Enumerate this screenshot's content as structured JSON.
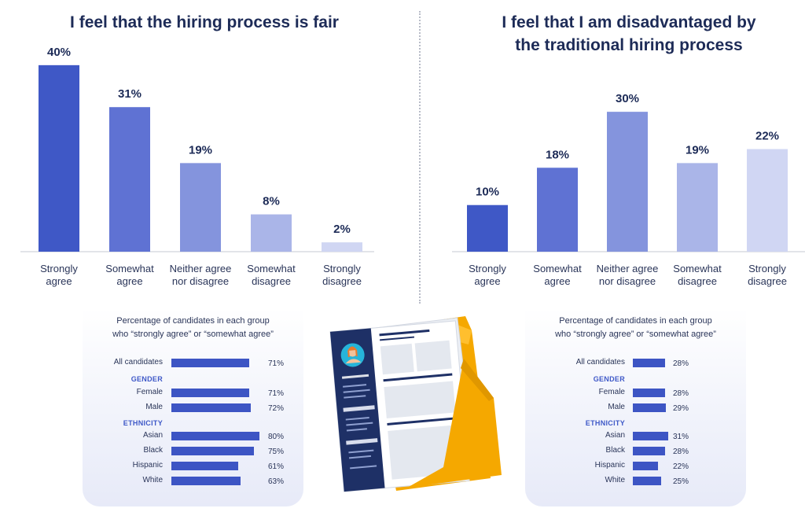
{
  "colors": {
    "bar_1": "#3f58c6",
    "bar_2": "#5f72d3",
    "bar_3": "#8494dd",
    "bar_4": "#aab5e8",
    "bar_5": "#d0d6f3",
    "hbar": "#3d55c4",
    "text": "#1f2b52",
    "group_label": "#3f59c8",
    "folder": "#f5a800",
    "document_dark": "#1e3066"
  },
  "left_chart": {
    "title": "I feel that the hiring process is fair"
  },
  "right_chart": {
    "title_line1": "I feel that I am disadvantaged by",
    "title_line2": "the traditional hiring process"
  },
  "panel_left": {
    "subtitle_line1": "Percentage of candidates in each group",
    "subtitle_line2": "who “strongly agree” or “somewhat agree”"
  },
  "panel_right": {
    "subtitle_line1": "Percentage of candidates in each group",
    "subtitle_line2": "who “strongly agree” or “somewhat agree”"
  },
  "illustration": {
    "icon": "resume-folder-icon"
  },
  "chart_data": [
    {
      "type": "bar",
      "title": "I feel that the hiring process is fair",
      "categories": [
        "Strongly agree",
        "Somewhat agree",
        "Neither agree nor disagree",
        "Somewhat disagree",
        "Strongly disagree"
      ],
      "category_lines": [
        [
          "Strongly",
          "agree"
        ],
        [
          "Somewhat",
          "agree"
        ],
        [
          "Neither agree",
          "nor disagree"
        ],
        [
          "Somewhat",
          "disagree"
        ],
        [
          "Strongly",
          "disagree"
        ]
      ],
      "values": [
        40,
        31,
        19,
        8,
        2
      ],
      "value_labels": [
        "40%",
        "31%",
        "19%",
        "8%",
        "2%"
      ],
      "unit": "%",
      "ylim": [
        0,
        42
      ],
      "grid": false
    },
    {
      "type": "bar",
      "title": "I feel that I am disadvantaged by the traditional hiring process",
      "categories": [
        "Strongly agree",
        "Somewhat agree",
        "Neither agree nor disagree",
        "Somewhat disagree",
        "Strongly disagree"
      ],
      "category_lines": [
        [
          "Strongly",
          "agree"
        ],
        [
          "Somewhat",
          "agree"
        ],
        [
          "Neither agree",
          "nor disagree"
        ],
        [
          "Somewhat",
          "disagree"
        ],
        [
          "Strongly",
          "disagree"
        ]
      ],
      "values": [
        10,
        18,
        30,
        19,
        22
      ],
      "value_labels": [
        "10%",
        "18%",
        "30%",
        "19%",
        "22%"
      ],
      "unit": "%",
      "ylim": [
        0,
        42
      ],
      "grid": false
    },
    {
      "type": "bar",
      "orientation": "horizontal",
      "title": "Percentage of candidates in each group who “strongly agree” or “somewhat agree”",
      "categories": [
        "All candidates",
        "Female",
        "Male",
        "Asian",
        "Black",
        "Hispanic",
        "White"
      ],
      "groups": [
        "",
        "GENDER",
        "GENDER",
        "ETHNICITY",
        "ETHNICITY",
        "ETHNICITY",
        "ETHNICITY"
      ],
      "values": [
        71,
        71,
        72,
        80,
        75,
        61,
        63
      ],
      "value_labels": [
        "71%",
        "71%",
        "72%",
        "80%",
        "75%",
        "61%",
        "63%"
      ],
      "xlim": [
        0,
        100
      ]
    },
    {
      "type": "bar",
      "orientation": "horizontal",
      "title": "Percentage of candidates in each group who “strongly agree” or “somewhat agree”",
      "categories": [
        "All candidates",
        "Female",
        "Male",
        "Asian",
        "Black",
        "Hispanic",
        "White"
      ],
      "groups": [
        "",
        "GENDER",
        "GENDER",
        "ETHNICITY",
        "ETHNICITY",
        "ETHNICITY",
        "ETHNICITY"
      ],
      "values": [
        28,
        28,
        29,
        31,
        28,
        22,
        25
      ],
      "value_labels": [
        "28%",
        "28%",
        "29%",
        "31%",
        "28%",
        "22%",
        "25%"
      ],
      "xlim": [
        0,
        40
      ]
    }
  ]
}
